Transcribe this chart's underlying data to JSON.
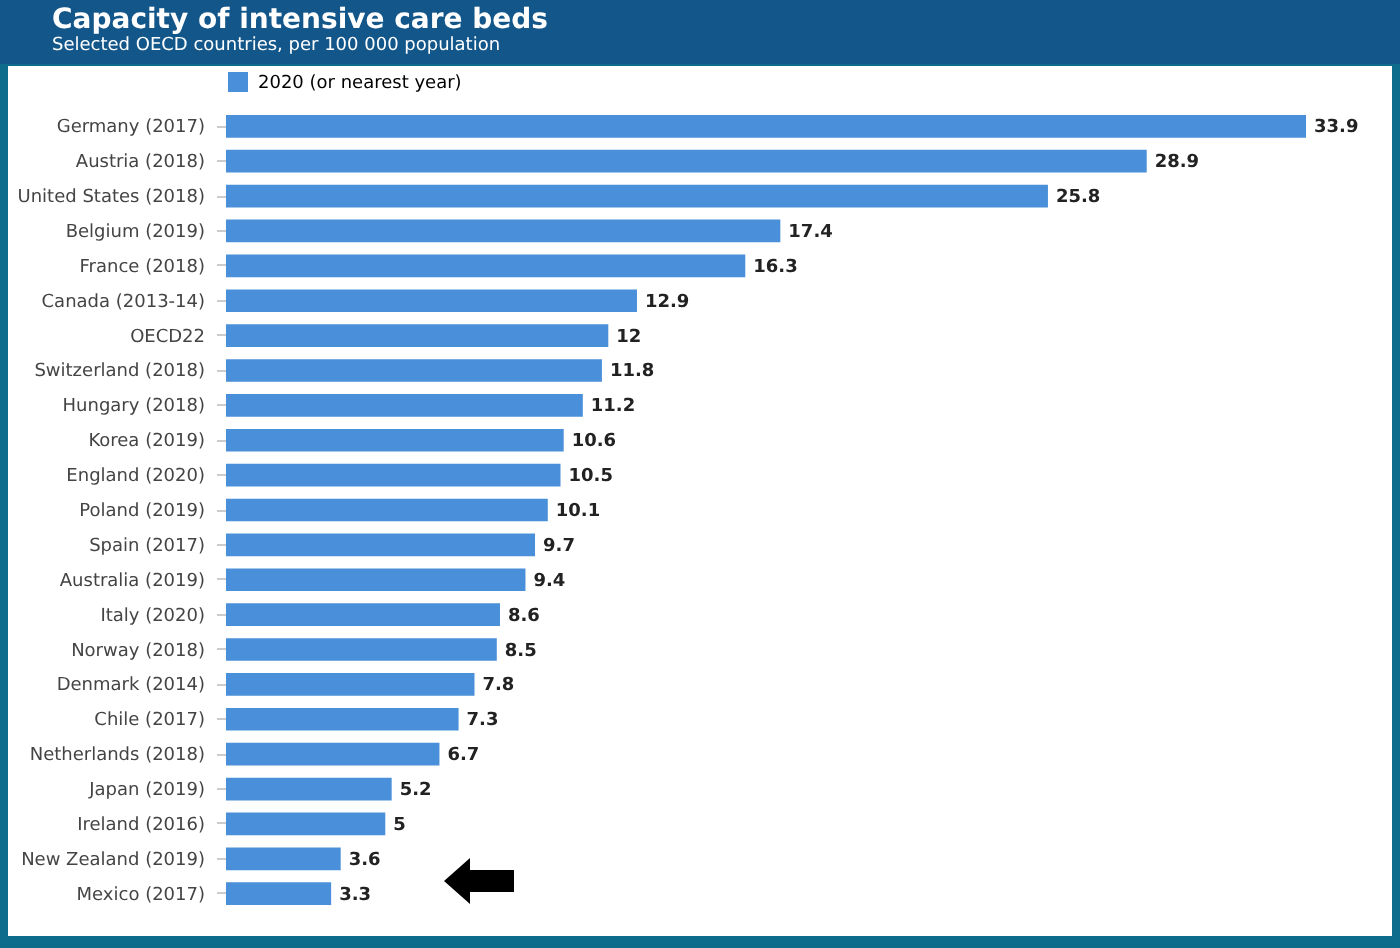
{
  "chart_data": {
    "type": "bar",
    "orientation": "horizontal",
    "title": "Capacity of intensive care beds",
    "subtitle": "Selected OECD countries, per 100 000 population",
    "categories": [
      "Germany (2017)",
      "Austria (2018)",
      "United States (2018)",
      "Belgium (2019)",
      "France (2018)",
      "Canada (2013-14)",
      "OECD22",
      "Switzerland (2018)",
      "Hungary (2018)",
      "Korea (2019)",
      "England (2020)",
      "Poland (2019)",
      "Spain (2017)",
      "Australia (2019)",
      "Italy (2020)",
      "Norway (2018)",
      "Denmark (2014)",
      "Chile (2017)",
      "Netherlands (2018)",
      "Japan (2019)",
      "Ireland (2016)",
      "New Zealand (2019)",
      "Mexico (2017)"
    ],
    "series": [
      {
        "name": "2020 (or nearest year)",
        "color": "#4a8fd9",
        "values": [
          33.9,
          28.9,
          25.8,
          17.4,
          16.3,
          12.9,
          12,
          11.8,
          11.2,
          10.6,
          10.5,
          10.1,
          9.7,
          9.4,
          8.6,
          8.5,
          7.8,
          7.3,
          6.7,
          5.2,
          5,
          3.6,
          3.3
        ]
      }
    ],
    "data_labels": true,
    "legend": "top",
    "grid": false
  }
}
